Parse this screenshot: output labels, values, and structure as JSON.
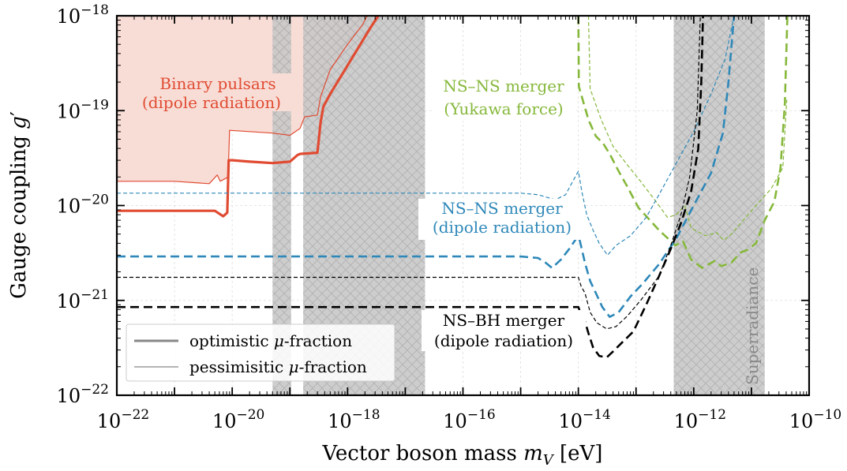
{
  "chart_data": {
    "type": "line",
    "xscale": "log",
    "yscale": "log",
    "xlim": [
      1e-22,
      1e-10
    ],
    "ylim": [
      1e-22,
      1e-18
    ],
    "xlabel_text": "Vector boson mass ",
    "xlabel_var": "m",
    "xlabel_sub": "V",
    "xlabel_unit": " [eV]",
    "ylabel_text": "Gauge coupling ",
    "ylabel_var": "g",
    "ylabel_prime": "′",
    "x_ticks": [
      {
        "label": "10",
        "exp": "−22",
        "value": 1e-22
      },
      {
        "label": "10",
        "exp": "−20",
        "value": 1e-20
      },
      {
        "label": "10",
        "exp": "−18",
        "value": 1e-18
      },
      {
        "label": "10",
        "exp": "−16",
        "value": 1e-16
      },
      {
        "label": "10",
        "exp": "−14",
        "value": 1e-14
      },
      {
        "label": "10",
        "exp": "−12",
        "value": 1e-12
      },
      {
        "label": "10",
        "exp": "−10",
        "value": 1e-10
      }
    ],
    "y_ticks": [
      {
        "label": "10",
        "exp": "−22",
        "value": 1e-22
      },
      {
        "label": "10",
        "exp": "−21",
        "value": 1e-21
      },
      {
        "label": "10",
        "exp": "−20",
        "value": 1e-20
      },
      {
        "label": "10",
        "exp": "−19",
        "value": 1e-19
      },
      {
        "label": "10",
        "exp": "−18",
        "value": 1e-18
      }
    ],
    "grid": true,
    "colors": {
      "pulsar": "#e04b32",
      "pulsar_fill": "#f8ddd6",
      "yukawa": "#86b83b",
      "dipole": "#2e88b9",
      "nsbh": "#000000",
      "band": "#c8c8c8"
    },
    "excluded_bands": [
      {
        "x": [
          5e-20,
          1.05e-19
        ]
      },
      {
        "x": [
          1.7e-19,
          2.2e-17
        ]
      },
      {
        "x": [
          4.5e-13,
          1.7e-11
        ]
      }
    ],
    "series": [
      {
        "id": "pulsar-optimistic",
        "color": "pulsar",
        "style": "solid",
        "width": 3.2,
        "x": [
          1e-22,
          1e-21,
          5e-21,
          7e-21,
          8.2e-21,
          8.7e-21,
          1e-20,
          2e-20,
          5e-20,
          1e-19,
          1.35e-19,
          1.5e-19,
          3e-19,
          3.4e-19,
          3.8e-19,
          5e-19,
          8e-19,
          1.5e-18,
          2.5e-18,
          3.4e-18
        ],
        "y": [
          8.8e-21,
          8.8e-21,
          8.8e-21,
          7.7e-21,
          8.4e-21,
          3e-20,
          3e-20,
          2.9e-20,
          2.8e-20,
          2.9e-20,
          3.4e-20,
          3.5e-20,
          3.6e-20,
          7.5e-20,
          1.1e-19,
          1.5e-19,
          2.4e-19,
          4.5e-19,
          7.5e-19,
          1e-18
        ]
      },
      {
        "id": "pulsar-pessimistic",
        "color": "pulsar",
        "style": "solid",
        "width": 1.2,
        "x": [
          1e-22,
          1e-21,
          4e-21,
          5.5e-21,
          6.2e-21,
          8.5e-21,
          9e-21,
          5e-20,
          1e-19,
          1.5e-19,
          1.8e-19,
          3e-19,
          3.4e-19,
          5e-19,
          1e-18,
          1.8e-18,
          2.2e-18
        ],
        "y": [
          1.8e-20,
          1.8e-20,
          1.7e-20,
          2.1e-20,
          1.8e-20,
          2e-20,
          6.2e-20,
          5.8e-20,
          5.5e-20,
          6.5e-20,
          8.6e-20,
          9e-20,
          1.4e-19,
          2.7e-19,
          5e-19,
          8e-19,
          1e-18
        ]
      },
      {
        "id": "yukawa-optimistic",
        "color": "yukawa",
        "style": "dashed",
        "width": 2.6,
        "x": [
          1e-14,
          1.02e-14,
          1.5e-14,
          2e-14,
          2.7e-14,
          3.5e-14,
          5e-14,
          7e-14,
          1.1e-13,
          2.5e-13,
          4.8e-13,
          6.5e-13,
          9e-13,
          1.4e-12,
          2.3e-12,
          3e-12,
          4.5e-12,
          6.5e-12,
          8.5e-12,
          1.2e-11,
          1.7e-11,
          2.5e-11,
          3.2e-11,
          3.8e-11,
          4.2e-11
        ],
        "y": [
          1e-18,
          1.8e-19,
          8e-20,
          5.4e-20,
          4.5e-20,
          3.5e-20,
          2.3e-20,
          1.6e-20,
          9.5e-21,
          5.5e-21,
          3.8e-21,
          4.2e-21,
          2.7e-21,
          2.2e-21,
          2.6e-21,
          2.3e-21,
          2.5e-21,
          3.2e-21,
          3.4e-21,
          4e-21,
          7e-21,
          1.1e-20,
          2.5e-20,
          1.2e-19,
          1e-18
        ]
      },
      {
        "id": "yukawa-pessimistic",
        "color": "yukawa",
        "style": "dashed",
        "width": 1.2,
        "x": [
          1.5e-14,
          1.6e-14,
          2.5e-14,
          4e-14,
          7e-14,
          1.2e-13,
          2.5e-13,
          3.5e-13,
          5e-13,
          7e-13,
          9e-13,
          1.6e-12,
          2.5e-12,
          3.3e-12,
          4.5e-12,
          8e-12,
          1.2e-11,
          2.2e-11,
          3.5e-11,
          4.1e-11
        ],
        "y": [
          1e-18,
          1.7e-19,
          8e-20,
          4.2e-20,
          2.7e-20,
          1.8e-20,
          1e-20,
          7.5e-21,
          8e-21,
          1e-20,
          5.8e-21,
          4.8e-21,
          5.2e-21,
          4.3e-21,
          5e-21,
          7.5e-21,
          1e-20,
          1.5e-20,
          2.5e-20,
          1.3e-19
        ]
      },
      {
        "id": "dipole-optimistic",
        "color": "dipole",
        "style": "dashed",
        "width": 2.6,
        "x": [
          1e-22,
          1e-15,
          2e-15,
          2.7e-15,
          3.5e-15,
          5e-15,
          7e-15,
          9e-15,
          1.02e-14,
          1.3e-14,
          1.6e-14,
          2e-14,
          2.6e-14,
          3.5e-14,
          5e-14,
          8e-14,
          1.3e-13,
          2.5e-13,
          5e-13,
          1e-12,
          2e-12,
          3.2e-12,
          4e-12,
          5e-12
        ],
        "y": [
          2.9e-21,
          2.9e-21,
          2.8e-21,
          2.5e-21,
          2.2e-21,
          2.7e-21,
          3.5e-21,
          4.4e-21,
          4.7e-21,
          2.5e-21,
          1.6e-21,
          1.2e-21,
          8.5e-22,
          6.7e-22,
          7.5e-22,
          1.1e-21,
          1.5e-21,
          2.4e-21,
          4.5e-21,
          1e-20,
          2.2e-20,
          5.8e-20,
          2e-19,
          1e-18
        ]
      },
      {
        "id": "dipole-pessimistic",
        "color": "dipole",
        "style": "dashed",
        "width": 1.2,
        "x": [
          1e-22,
          1e-15,
          2e-15,
          4e-15,
          6e-15,
          8e-15,
          1e-14,
          1.15e-14,
          1.4e-14,
          1.8e-14,
          2.3e-14,
          3.2e-14,
          4.5e-14,
          8e-14,
          1.5e-13,
          2.5e-13,
          5e-13,
          1e-12,
          2e-12,
          3.5e-12,
          5e-12
        ],
        "y": [
          1.35e-20,
          1.35e-20,
          1.3e-20,
          1.15e-20,
          1.3e-20,
          1.8e-20,
          2.3e-20,
          1.4e-20,
          8e-21,
          5.5e-21,
          4e-21,
          3e-21,
          3.8e-21,
          4.8e-21,
          7.5e-21,
          1.3e-20,
          2.8e-20,
          6e-20,
          1.5e-19,
          3.5e-19,
          1e-18
        ]
      },
      {
        "id": "nsbh-optimistic",
        "color": "nsbh",
        "style": "dashed",
        "width": 2.6,
        "x": [
          1e-22,
          1e-14,
          1.12e-14,
          1.3e-14,
          1.5e-14,
          1.8e-14,
          2.3e-14,
          3.1e-14,
          4e-14,
          6e-14,
          9e-14,
          1.5e-13,
          2.5e-13,
          4e-13,
          6e-13,
          9e-13,
          1.2e-12,
          1.35e-12,
          1.45e-12
        ],
        "y": [
          8.5e-22,
          8.5e-22,
          7e-22,
          6e-22,
          4.5e-22,
          3.2e-22,
          2.6e-22,
          2.5e-22,
          2.9e-22,
          3.7e-22,
          4.7e-22,
          9e-22,
          1.8e-21,
          3.5e-21,
          6.5e-21,
          1.4e-20,
          4e-20,
          2e-19,
          1e-18
        ]
      },
      {
        "id": "nsbh-pessimistic",
        "color": "nsbh",
        "style": "dashed",
        "width": 1.2,
        "x": [
          1e-22,
          1e-14,
          1.12e-14,
          1.3e-14,
          1.6e-14,
          2.1e-14,
          3.1e-14,
          4.5e-14,
          7e-14,
          1.2e-13,
          2.5e-13,
          4e-13,
          6e-13,
          8.5e-13,
          1.15e-12,
          1.3e-12
        ],
        "y": [
          1.75e-21,
          1.75e-21,
          1.4e-21,
          1.2e-21,
          7.5e-22,
          5.8e-22,
          5e-22,
          5.3e-22,
          6.8e-22,
          1e-21,
          1.8e-21,
          3.8e-21,
          8e-21,
          2e-20,
          1e-19,
          1e-18
        ]
      }
    ],
    "annotations": {
      "pulsar": [
        "Binary pulsars",
        "(dipole radiation)"
      ],
      "yukawa": [
        "NS–NS merger",
        "(Yukawa force)"
      ],
      "dipole": [
        "NS–NS merger",
        "(dipole radiation)"
      ],
      "nsbh": [
        "NS–BH merger",
        "(dipole radiation)"
      ],
      "superradiance": "Superradiance"
    },
    "legend": {
      "position": "bottom-left",
      "entries": [
        {
          "pre": "optimistic ",
          "mu": "μ",
          "post": "-fraction",
          "style": "thick"
        },
        {
          "pre": "pessimisitic ",
          "mu": "μ",
          "post": "-fraction",
          "style": "thin"
        }
      ]
    }
  }
}
